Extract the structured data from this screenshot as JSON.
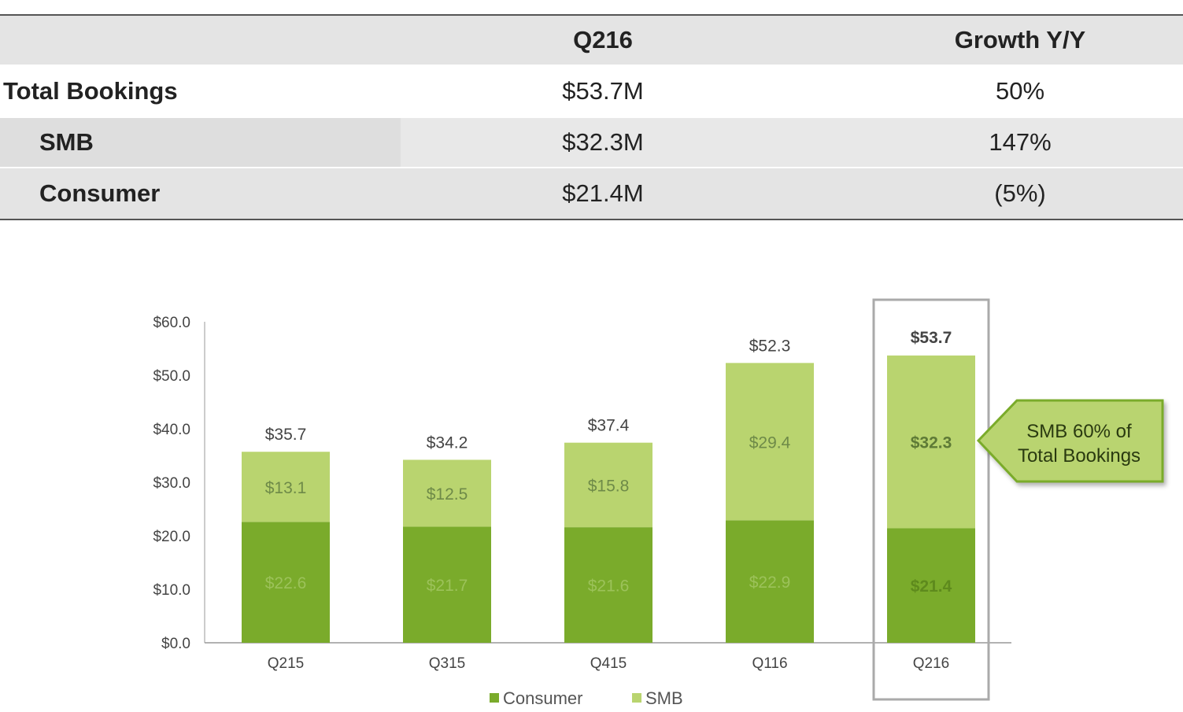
{
  "table": {
    "headers": [
      "",
      "Q216",
      "Growth Y/Y"
    ],
    "rows": [
      {
        "label": "Total Bookings",
        "value": "$53.7M",
        "growth": "50%"
      },
      {
        "label": "SMB",
        "value": "$32.3M",
        "growth": "147%"
      },
      {
        "label": "Consumer",
        "value": "$21.4M",
        "growth": "(5%)"
      }
    ]
  },
  "chart_data": {
    "type": "bar",
    "stacked": true,
    "categories": [
      "Q215",
      "Q315",
      "Q415",
      "Q116",
      "Q216"
    ],
    "series": [
      {
        "name": "Consumer",
        "values": [
          22.6,
          21.7,
          21.6,
          22.9,
          21.4
        ],
        "labels": [
          "$22.6",
          "$21.7",
          "$21.6",
          "$22.9",
          "$21.4"
        ],
        "color": "#7aab2b"
      },
      {
        "name": "SMB",
        "values": [
          13.1,
          12.5,
          15.8,
          29.4,
          32.3
        ],
        "labels": [
          "$13.1",
          "$12.5",
          "$15.8",
          "$29.4",
          "$32.3"
        ],
        "color": "#b9d46f"
      }
    ],
    "totals": [
      35.7,
      34.2,
      37.4,
      52.3,
      53.7
    ],
    "total_labels": [
      "$35.7",
      "$34.2",
      "$37.4",
      "$52.3",
      "$53.7"
    ],
    "yticks": [
      "$0.0",
      "$10.0",
      "$20.0",
      "$30.0",
      "$40.0",
      "$50.0",
      "$60.0"
    ],
    "ylim": [
      0,
      60
    ],
    "highlight_category": "Q216",
    "callout": "SMB 60% of\nTotal Bookings",
    "legend_position": "bottom-center",
    "grid": false
  }
}
